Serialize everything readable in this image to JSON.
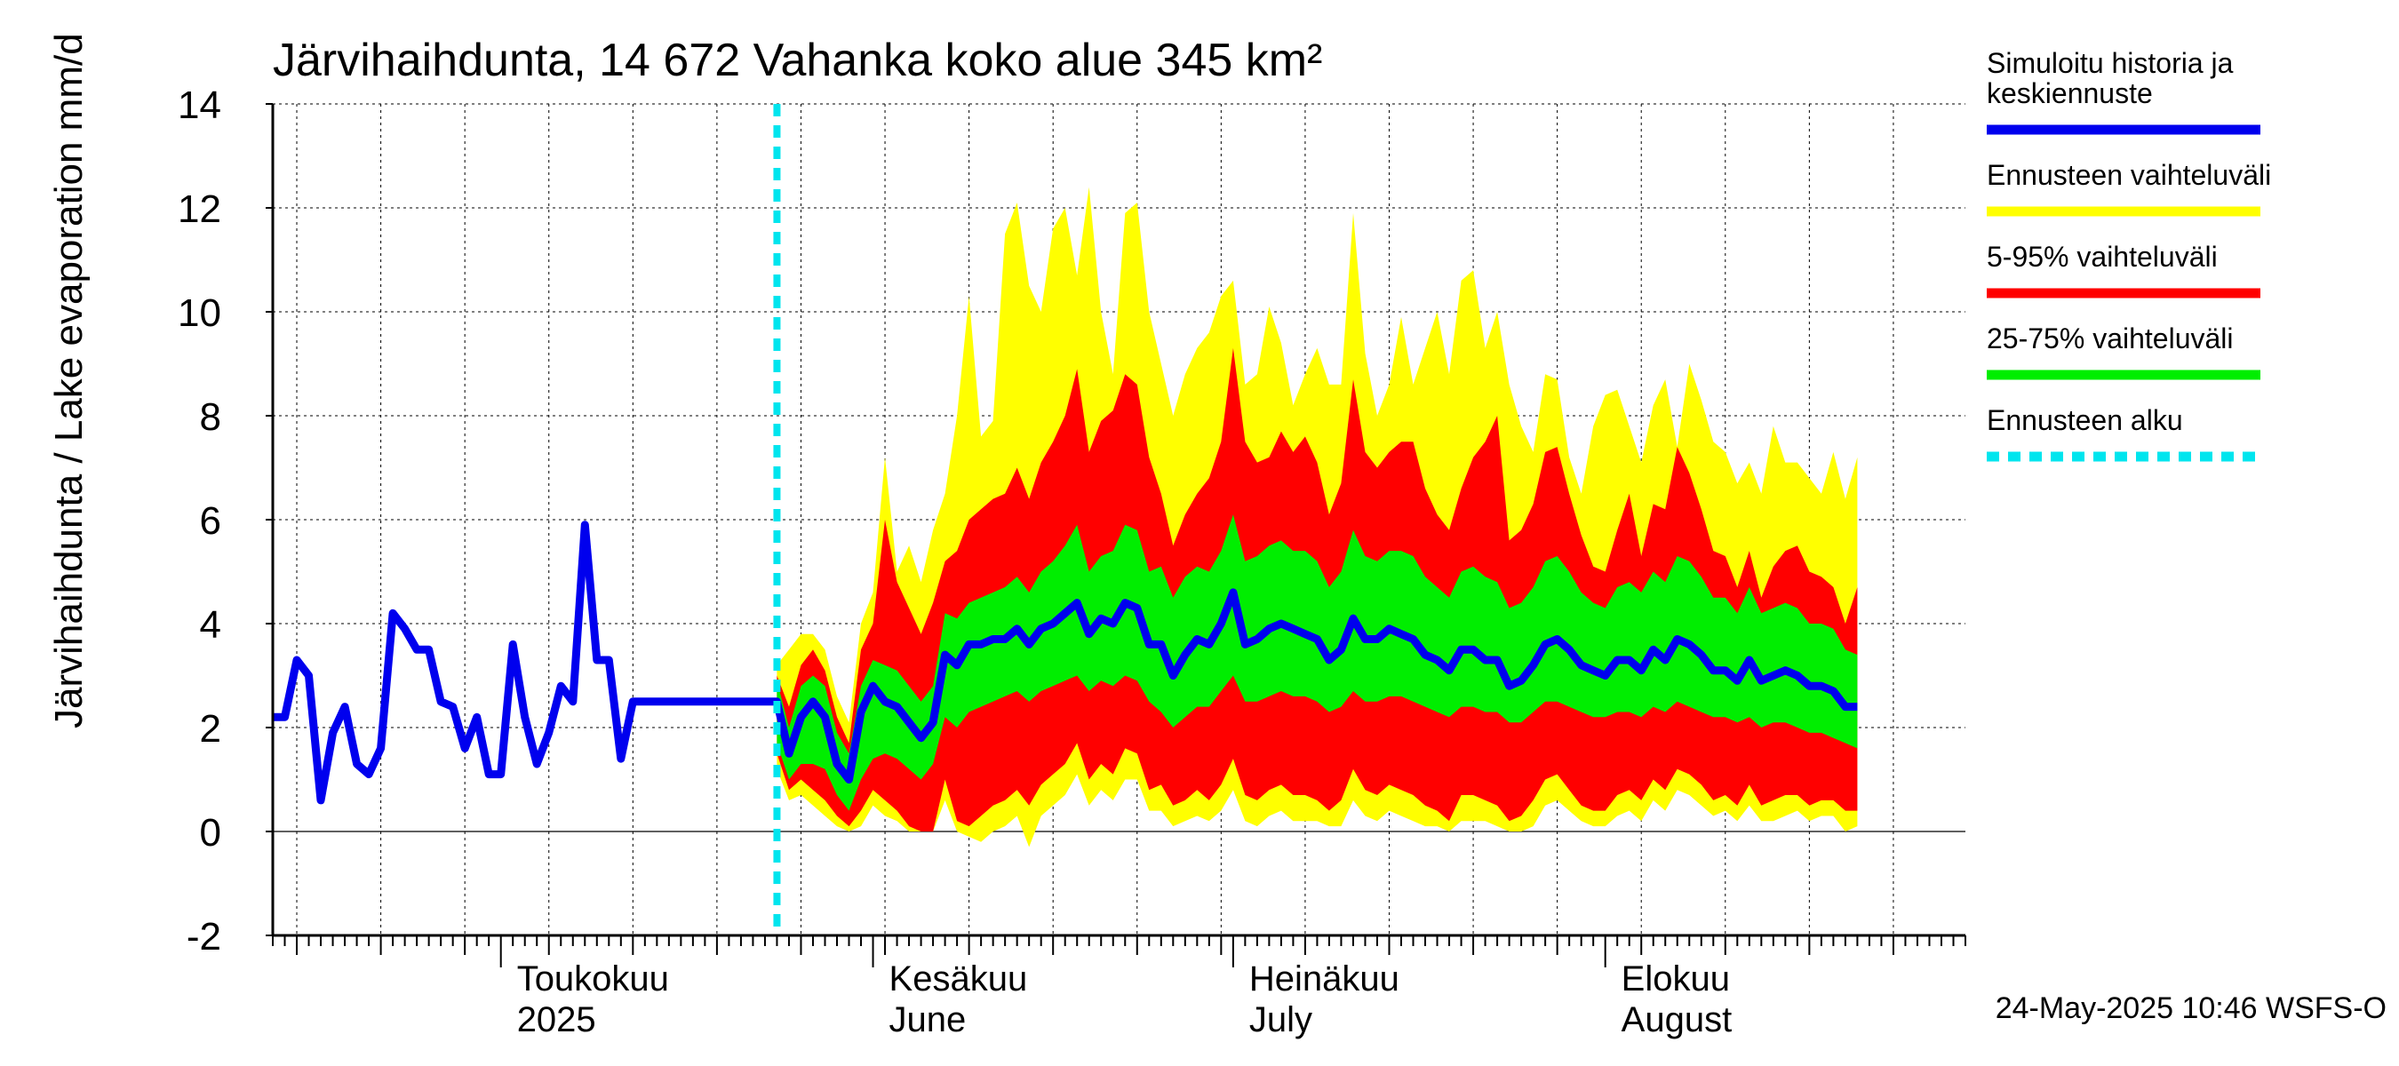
{
  "chart_data": {
    "type": "area",
    "title": "Järvihaihdunta, 14 672 Vahanka koko alue 345 km²",
    "ylabel": "Järvihaihdunta / Lake evaporation   mm/d",
    "xlabel": "",
    "ylim": [
      -2,
      14
    ],
    "yticks": [
      -2,
      0,
      2,
      4,
      6,
      8,
      10,
      12,
      14
    ],
    "xlim": [
      "2025-04-12",
      "2025-08-31"
    ],
    "forecast_start": "2025-05-24",
    "grid": true,
    "legend_position": "right",
    "x_month_labels": [
      {
        "date": "2025-05-01",
        "line1": "Toukokuu",
        "line2": "2025"
      },
      {
        "date": "2025-06-01",
        "line1": "Kesäkuu",
        "line2": "June"
      },
      {
        "date": "2025-07-01",
        "line1": "Heinäkuu",
        "line2": "July"
      },
      {
        "date": "2025-08-01",
        "line1": "Elokuu",
        "line2": "August"
      }
    ],
    "legend": [
      {
        "label_lines": [
          "Simuloitu historia ja",
          "keskiennuste"
        ],
        "color": "#0000ee",
        "style": "solid"
      },
      {
        "label_lines": [
          "Ennusteen vaihteluväli"
        ],
        "color": "#ffff00",
        "style": "solid"
      },
      {
        "label_lines": [
          "5-95% vaihteluväli"
        ],
        "color": "#ff0000",
        "style": "solid"
      },
      {
        "label_lines": [
          "25-75% vaihteluväli"
        ],
        "color": "#00ee00",
        "style": "solid"
      },
      {
        "label_lines": [
          "Ennusteen alku"
        ],
        "color": "#00e5ee",
        "style": "dashed"
      }
    ],
    "history": {
      "name": "Simuloitu historia ja keskiennuste",
      "start_date": "2025-04-12",
      "values": [
        2.2,
        2.2,
        3.3,
        3.0,
        0.6,
        1.9,
        2.4,
        1.3,
        1.1,
        1.6,
        4.2,
        3.9,
        3.5,
        3.5,
        2.5,
        2.4,
        1.6,
        2.2,
        1.1,
        1.1,
        3.6,
        2.2,
        1.3,
        1.9,
        2.8,
        2.5,
        5.9,
        3.3,
        3.3,
        1.4,
        2.5
      ]
    },
    "forecast": {
      "start_date": "2025-05-24",
      "median": [
        2.5,
        1.5,
        2.2,
        2.5,
        2.2,
        1.3,
        1.0,
        2.3,
        2.8,
        2.5,
        2.4,
        2.1,
        1.8,
        2.1,
        3.4,
        3.2,
        3.6,
        3.6,
        3.7,
        3.7,
        3.9,
        3.6,
        3.9,
        4.0,
        4.2,
        4.4,
        3.8,
        4.1,
        4.0,
        4.4,
        4.3,
        3.6,
        3.6,
        3.0,
        3.4,
        3.7,
        3.6,
        4.0,
        4.6,
        3.6,
        3.7,
        3.9,
        4.0,
        3.9,
        3.8,
        3.7,
        3.3,
        3.5,
        4.1,
        3.7,
        3.7,
        3.9,
        3.8,
        3.7,
        3.4,
        3.3,
        3.1,
        3.5,
        3.5,
        3.3,
        3.3,
        2.8,
        2.9,
        3.2,
        3.6,
        3.7,
        3.5,
        3.2,
        3.1,
        3.0,
        3.3,
        3.3,
        3.1,
        3.5,
        3.3,
        3.7,
        3.6,
        3.4,
        3.1,
        3.1,
        2.9,
        3.3,
        2.9,
        3.0,
        3.1,
        3.0,
        2.8,
        2.8,
        2.7,
        2.4,
        2.4
      ],
      "q25": [
        1.7,
        1.0,
        1.3,
        1.3,
        1.2,
        0.7,
        0.4,
        1.0,
        1.4,
        1.5,
        1.4,
        1.2,
        1.0,
        1.3,
        2.2,
        2.0,
        2.3,
        2.4,
        2.5,
        2.6,
        2.7,
        2.5,
        2.7,
        2.8,
        2.9,
        3.0,
        2.7,
        2.9,
        2.8,
        3.0,
        2.9,
        2.5,
        2.3,
        2.0,
        2.2,
        2.4,
        2.4,
        2.7,
        3.0,
        2.5,
        2.5,
        2.6,
        2.7,
        2.6,
        2.6,
        2.5,
        2.3,
        2.4,
        2.7,
        2.5,
        2.5,
        2.6,
        2.6,
        2.5,
        2.4,
        2.3,
        2.2,
        2.4,
        2.4,
        2.3,
        2.3,
        2.1,
        2.1,
        2.3,
        2.5,
        2.5,
        2.4,
        2.3,
        2.2,
        2.2,
        2.3,
        2.3,
        2.2,
        2.4,
        2.3,
        2.5,
        2.4,
        2.3,
        2.2,
        2.2,
        2.1,
        2.2,
        2.0,
        2.1,
        2.1,
        2.0,
        1.9,
        1.9,
        1.8,
        1.7,
        1.6
      ],
      "q75": [
        2.9,
        2.0,
        2.8,
        3.0,
        2.8,
        1.9,
        1.5,
        2.8,
        3.3,
        3.2,
        3.1,
        2.8,
        2.5,
        2.8,
        4.2,
        4.1,
        4.4,
        4.5,
        4.6,
        4.7,
        4.9,
        4.6,
        5.0,
        5.2,
        5.5,
        5.9,
        5.0,
        5.3,
        5.4,
        5.9,
        5.8,
        5.0,
        5.1,
        4.5,
        4.9,
        5.1,
        5.0,
        5.4,
        6.1,
        5.2,
        5.3,
        5.5,
        5.6,
        5.4,
        5.4,
        5.2,
        4.7,
        5.0,
        5.8,
        5.3,
        5.2,
        5.4,
        5.4,
        5.3,
        4.9,
        4.7,
        4.5,
        5.0,
        5.1,
        4.9,
        4.8,
        4.3,
        4.4,
        4.7,
        5.2,
        5.3,
        5.0,
        4.6,
        4.4,
        4.3,
        4.7,
        4.8,
        4.6,
        5.0,
        4.8,
        5.3,
        5.2,
        4.9,
        4.5,
        4.5,
        4.2,
        4.7,
        4.2,
        4.3,
        4.4,
        4.3,
        4.0,
        4.0,
        3.9,
        3.5,
        3.4
      ],
      "p5": [
        1.5,
        0.8,
        1.0,
        0.8,
        0.6,
        0.3,
        0.1,
        0.4,
        0.8,
        0.6,
        0.4,
        0.1,
        0.0,
        0.0,
        1.0,
        0.2,
        0.1,
        0.3,
        0.5,
        0.6,
        0.8,
        0.5,
        0.9,
        1.1,
        1.3,
        1.7,
        1.0,
        1.3,
        1.1,
        1.6,
        1.5,
        0.8,
        0.9,
        0.5,
        0.6,
        0.8,
        0.6,
        0.9,
        1.4,
        0.7,
        0.6,
        0.8,
        0.9,
        0.7,
        0.7,
        0.6,
        0.4,
        0.6,
        1.2,
        0.8,
        0.7,
        0.9,
        0.8,
        0.7,
        0.5,
        0.4,
        0.2,
        0.7,
        0.7,
        0.6,
        0.5,
        0.2,
        0.3,
        0.6,
        1.0,
        1.1,
        0.8,
        0.5,
        0.4,
        0.4,
        0.7,
        0.8,
        0.6,
        1.0,
        0.8,
        1.2,
        1.1,
        0.9,
        0.6,
        0.7,
        0.5,
        0.9,
        0.5,
        0.6,
        0.7,
        0.7,
        0.5,
        0.6,
        0.6,
        0.4,
        0.4
      ],
      "p95": [
        3.0,
        2.4,
        3.2,
        3.5,
        3.1,
        2.2,
        1.7,
        3.5,
        4.0,
        6.0,
        4.8,
        4.3,
        3.8,
        4.4,
        5.2,
        5.4,
        6.0,
        6.2,
        6.4,
        6.5,
        7.0,
        6.4,
        7.1,
        7.5,
        8.0,
        8.9,
        7.3,
        7.9,
        8.1,
        8.8,
        8.6,
        7.2,
        6.5,
        5.5,
        6.1,
        6.5,
        6.8,
        7.5,
        9.3,
        7.5,
        7.1,
        7.2,
        7.7,
        7.3,
        7.6,
        7.1,
        6.1,
        6.7,
        8.7,
        7.3,
        7.0,
        7.3,
        7.5,
        7.5,
        6.6,
        6.1,
        5.8,
        6.6,
        7.2,
        7.5,
        8.0,
        5.6,
        5.8,
        6.3,
        7.3,
        7.4,
        6.5,
        5.7,
        5.1,
        5.0,
        5.8,
        6.5,
        5.3,
        6.3,
        6.2,
        7.4,
        6.9,
        6.2,
        5.4,
        5.3,
        4.7,
        5.4,
        4.5,
        5.1,
        5.4,
        5.5,
        5.0,
        4.9,
        4.7,
        4.0,
        4.7
      ],
      "min": [
        1.2,
        0.6,
        0.7,
        0.5,
        0.3,
        0.1,
        0.0,
        0.1,
        0.5,
        0.3,
        0.2,
        0.0,
        0.0,
        0.0,
        0.6,
        0.0,
        -0.1,
        -0.2,
        0.0,
        0.1,
        0.3,
        -0.3,
        0.3,
        0.5,
        0.7,
        1.1,
        0.5,
        0.8,
        0.6,
        1.0,
        1.0,
        0.4,
        0.4,
        0.1,
        0.2,
        0.3,
        0.2,
        0.4,
        0.8,
        0.2,
        0.1,
        0.3,
        0.4,
        0.2,
        0.2,
        0.2,
        0.1,
        0.1,
        0.6,
        0.3,
        0.2,
        0.4,
        0.3,
        0.2,
        0.1,
        0.1,
        0.0,
        0.2,
        0.2,
        0.2,
        0.1,
        0.0,
        0.0,
        0.1,
        0.5,
        0.6,
        0.4,
        0.2,
        0.1,
        0.1,
        0.3,
        0.4,
        0.2,
        0.6,
        0.4,
        0.8,
        0.7,
        0.5,
        0.3,
        0.4,
        0.2,
        0.5,
        0.2,
        0.2,
        0.3,
        0.4,
        0.2,
        0.3,
        0.3,
        0.0,
        0.1
      ],
      "max": [
        3.2,
        3.5,
        3.8,
        3.8,
        3.5,
        2.6,
        2.1,
        4.0,
        4.6,
        7.2,
        5.0,
        5.5,
        4.8,
        5.8,
        6.5,
        8.0,
        10.3,
        7.6,
        7.9,
        11.5,
        12.1,
        10.5,
        10.0,
        11.6,
        12.0,
        10.7,
        12.4,
        10.0,
        8.8,
        11.9,
        12.1,
        10.0,
        9.0,
        8.0,
        8.8,
        9.3,
        9.6,
        10.3,
        10.6,
        8.6,
        8.8,
        10.1,
        9.4,
        8.2,
        8.8,
        9.3,
        8.6,
        8.6,
        11.9,
        9.2,
        8.0,
        8.6,
        9.9,
        8.6,
        9.3,
        10.0,
        8.8,
        10.6,
        10.8,
        9.3,
        10.0,
        8.6,
        7.8,
        7.3,
        8.8,
        8.7,
        7.2,
        6.5,
        7.8,
        8.4,
        8.5,
        7.8,
        7.1,
        8.2,
        8.7,
        7.4,
        9.0,
        8.3,
        7.5,
        7.3,
        6.7,
        7.1,
        6.5,
        7.8,
        7.1,
        7.1,
        6.8,
        6.5,
        7.3,
        6.4,
        7.2
      ]
    },
    "footer": "24-May-2025 10:46 WSFS-O"
  },
  "colors": {
    "history_line": "#0000ee",
    "range_yellow": "#ffff00",
    "range_red": "#ff0000",
    "range_green": "#00ee00",
    "forecast_start_line": "#00e5ee",
    "axis": "#000000",
    "grid": "#000000"
  }
}
